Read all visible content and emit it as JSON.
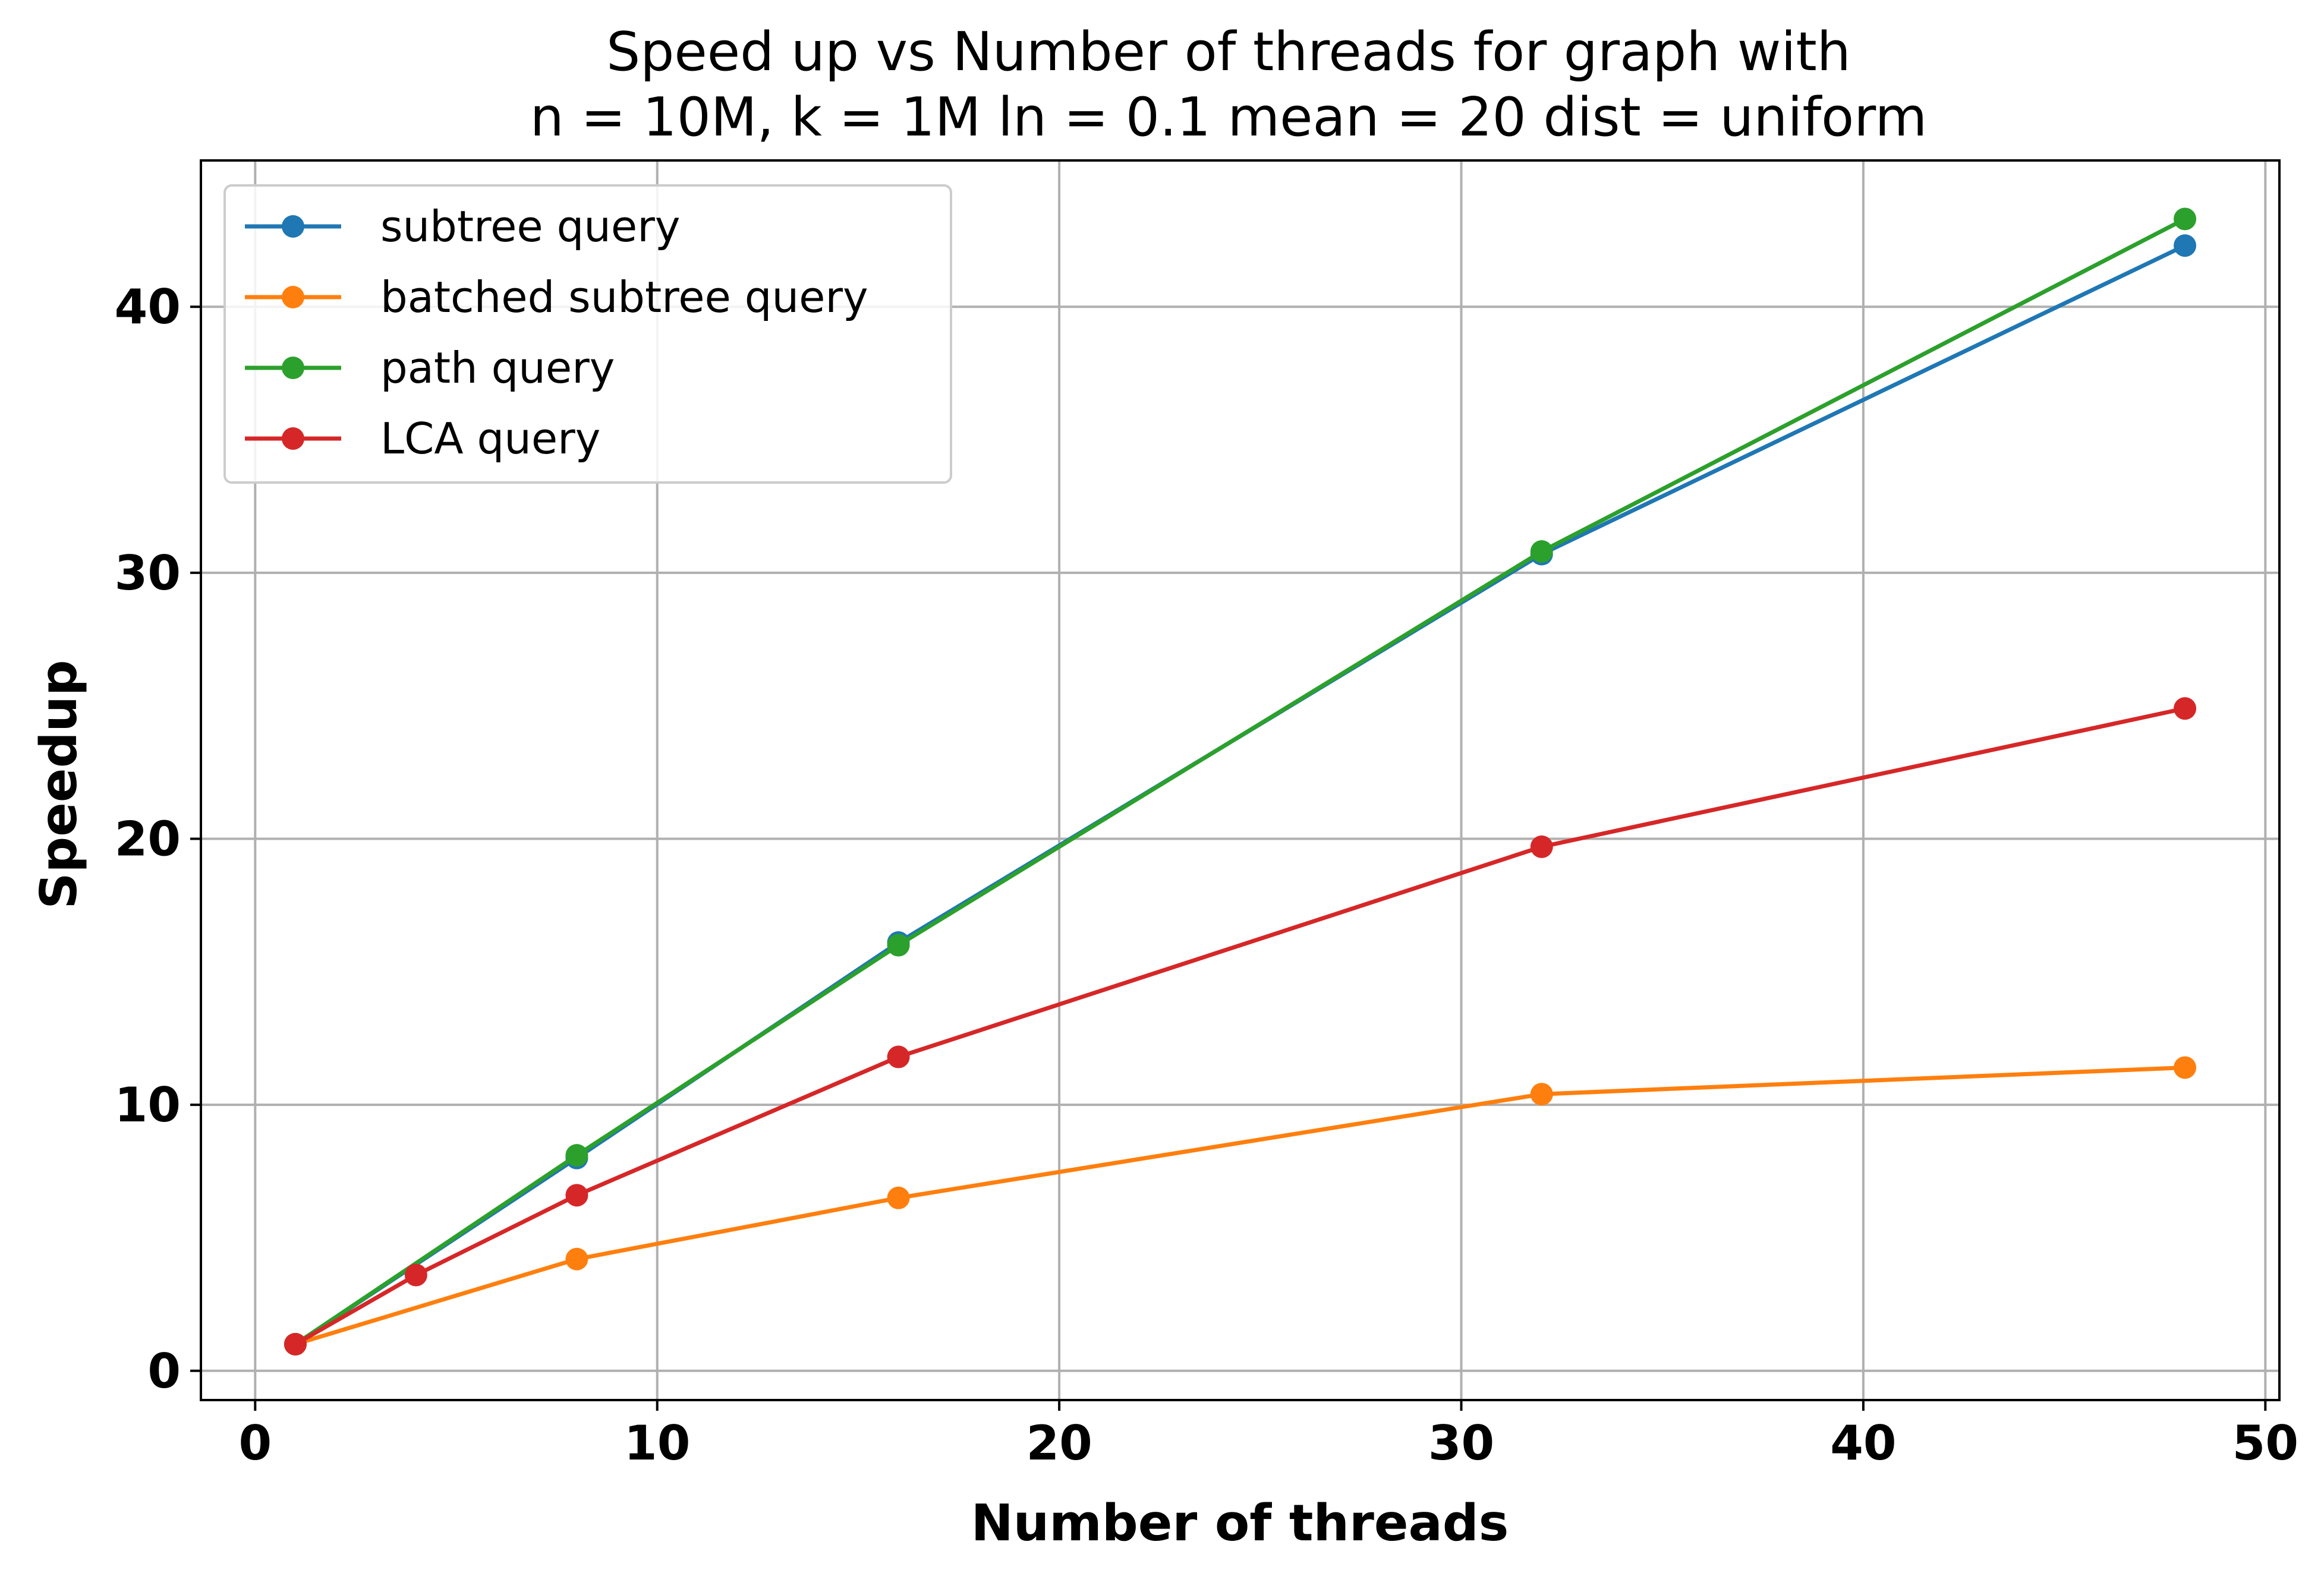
{
  "chart_data": {
    "type": "line",
    "title": [
      "Speed up vs Number of threads for graph with",
      "n = 10M, k = 1M ln = 0.1 mean = 20 dist = uniform"
    ],
    "xlabel": "Number of threads",
    "ylabel": "Speedup",
    "xlim": [
      -1.35,
      50.35
    ],
    "ylim": [
      -1.1,
      45.5
    ],
    "xticks": [
      0,
      10,
      20,
      30,
      40,
      50
    ],
    "yticks": [
      0,
      10,
      20,
      30,
      40
    ],
    "grid": true,
    "legend_position": "top-left",
    "series": [
      {
        "name": "subtree query",
        "color": "#1f77b4",
        "x": [
          1,
          8,
          16,
          32,
          48
        ],
        "y": [
          1.0,
          8.0,
          16.1,
          30.7,
          42.3
        ]
      },
      {
        "name": "batched subtree query",
        "color": "#ff7f0e",
        "x": [
          1,
          8,
          16,
          32,
          48
        ],
        "y": [
          1.0,
          4.2,
          6.5,
          10.4,
          11.4
        ]
      },
      {
        "name": "path query",
        "color": "#2ca02c",
        "x": [
          1,
          8,
          16,
          32,
          48
        ],
        "y": [
          1.0,
          8.1,
          16.0,
          30.8,
          43.3
        ]
      },
      {
        "name": "LCA query",
        "color": "#d62728",
        "x": [
          1,
          4,
          8,
          16,
          32,
          48
        ],
        "y": [
          1.0,
          3.6,
          6.6,
          11.8,
          19.7,
          24.9
        ]
      }
    ]
  }
}
